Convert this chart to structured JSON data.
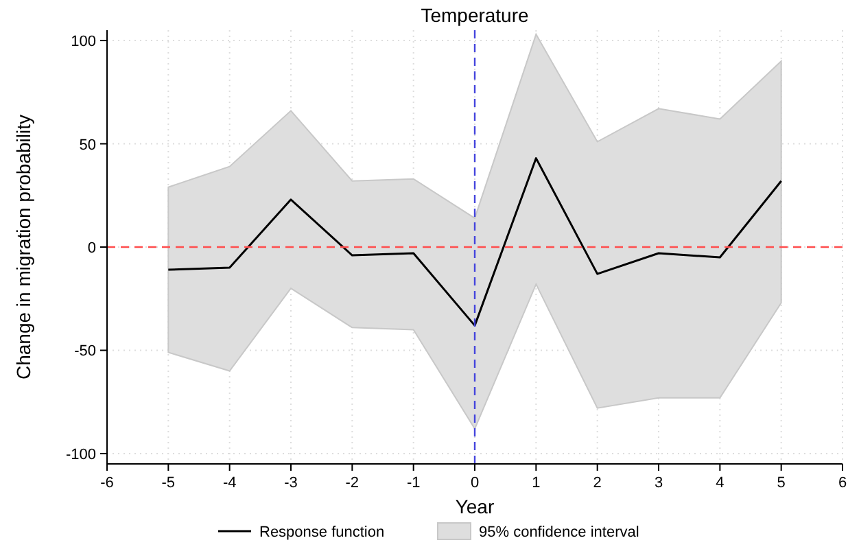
{
  "chart_data": {
    "type": "line",
    "title": "Temperature",
    "xlabel": "Year",
    "ylabel": "Change in migration probability",
    "x": [
      -5,
      -4,
      -3,
      -2,
      -1,
      0,
      1,
      2,
      3,
      4,
      5
    ],
    "series": [
      {
        "name": "Response function",
        "color": "#000000",
        "values": [
          -11,
          -10,
          23,
          -4,
          -3,
          -38,
          43,
          -13,
          -3,
          -5,
          32
        ],
        "lower": [
          -51,
          -60,
          -20,
          -39,
          -40,
          -88,
          -18,
          -78,
          -73,
          -73,
          -27
        ],
        "upper": [
          29,
          39,
          66,
          32,
          33,
          14,
          103,
          51,
          67,
          62,
          90
        ]
      }
    ],
    "annotations": [
      "95% confidence interval"
    ],
    "xlim": [
      -6,
      6
    ],
    "xticks": [
      -6,
      -5,
      -4,
      -3,
      -2,
      -1,
      0,
      1,
      2,
      3,
      4,
      5,
      6
    ],
    "ylim": [
      -105,
      105
    ],
    "yticks": [
      -100,
      -50,
      0,
      50,
      100
    ],
    "ref_lines": [
      {
        "axis": "y",
        "value": 0,
        "color": "#ff4d4d",
        "line_style": "dashed"
      },
      {
        "axis": "x",
        "value": 0,
        "color": "#4444dd",
        "line_style": "dashed"
      }
    ],
    "grid": true,
    "legend": "bottom",
    "marker": "none",
    "line_style": "solid"
  }
}
